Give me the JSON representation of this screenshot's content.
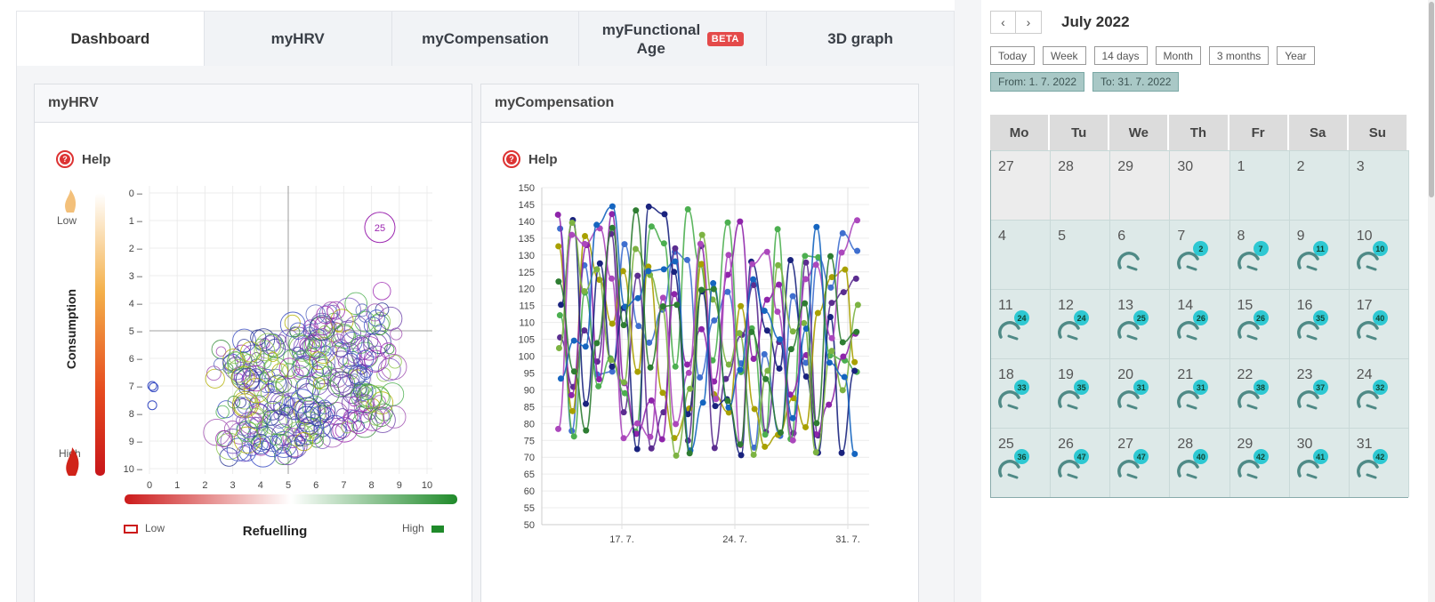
{
  "tabs": [
    {
      "label": "Dashboard"
    },
    {
      "label": "myHRV"
    },
    {
      "label": "myCompensation"
    },
    {
      "label": "myFunctional Age",
      "badge": "BETA"
    },
    {
      "label": "3D graph"
    }
  ],
  "cards": {
    "hrv": {
      "title": "myHRV",
      "help": "Help"
    },
    "comp": {
      "title": "myCompensation",
      "help": "Help"
    }
  },
  "hrv_chart": {
    "consumption_label": "Consumption",
    "low": "Low",
    "high": "High",
    "refuelling_label": "Refuelling",
    "refuel_low": "Low",
    "refuel_high": "High",
    "y_ticks": [
      "0",
      "1",
      "2",
      "3",
      "4",
      "5",
      "6",
      "7",
      "8",
      "9",
      "10"
    ],
    "x_ticks": [
      "0",
      "1",
      "2",
      "3",
      "4",
      "5",
      "6",
      "7",
      "8",
      "9",
      "10"
    ],
    "label_25": "25"
  },
  "comp_chart": {
    "y_ticks": [
      "150",
      "145",
      "140",
      "135",
      "130",
      "125",
      "120",
      "115",
      "110",
      "105",
      "100",
      "95",
      "90",
      "85",
      "80",
      "75",
      "70",
      "65",
      "60",
      "55",
      "50"
    ],
    "x_ticks": [
      "17. 7.",
      "24. 7.",
      "31. 7."
    ]
  },
  "calendar": {
    "month": "July 2022",
    "prev": "‹",
    "next": "›",
    "ranges": [
      "Today",
      "Week",
      "14 days",
      "Month",
      "3 months",
      "Year"
    ],
    "from": "From: 1. 7. 2022",
    "to": "To: 31. 7. 2022",
    "weekdays": [
      "Mo",
      "Tu",
      "We",
      "Th",
      "Fr",
      "Sa",
      "Su"
    ],
    "days": [
      {
        "n": "27",
        "out": true
      },
      {
        "n": "28",
        "out": true
      },
      {
        "n": "29",
        "out": true
      },
      {
        "n": "30",
        "out": true
      },
      {
        "n": "1"
      },
      {
        "n": "2"
      },
      {
        "n": "3"
      },
      {
        "n": "4"
      },
      {
        "n": "5"
      },
      {
        "n": "6",
        "g": true
      },
      {
        "n": "7",
        "b": "2"
      },
      {
        "n": "8",
        "b": "7"
      },
      {
        "n": "9",
        "b": "11"
      },
      {
        "n": "10",
        "b": "10"
      },
      {
        "n": "11",
        "b": "24"
      },
      {
        "n": "12",
        "b": "24"
      },
      {
        "n": "13",
        "b": "25"
      },
      {
        "n": "14",
        "b": "26"
      },
      {
        "n": "15",
        "b": "26"
      },
      {
        "n": "16",
        "b": "35"
      },
      {
        "n": "17",
        "b": "40"
      },
      {
        "n": "18",
        "b": "33"
      },
      {
        "n": "19",
        "b": "35"
      },
      {
        "n": "20",
        "b": "31"
      },
      {
        "n": "21",
        "b": "31"
      },
      {
        "n": "22",
        "b": "38"
      },
      {
        "n": "23",
        "b": "37"
      },
      {
        "n": "24",
        "b": "32"
      },
      {
        "n": "25",
        "b": "36"
      },
      {
        "n": "26",
        "b": "47"
      },
      {
        "n": "27",
        "b": "47"
      },
      {
        "n": "28",
        "b": "40"
      },
      {
        "n": "29",
        "b": "42"
      },
      {
        "n": "30",
        "b": "41"
      },
      {
        "n": "31",
        "b": "42"
      }
    ]
  }
}
